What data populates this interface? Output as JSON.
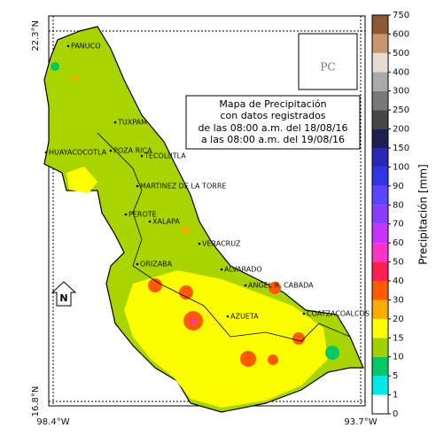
{
  "map": {
    "title": [
      "Mapa de Precipitación",
      "con datos registrados",
      "de las 08:00 a.m. del 18/08/16",
      "a las 08:00 a.m. del 19/08/16"
    ],
    "coords": {
      "lat_top": "22.3°N",
      "lat_bottom": "16.8°N",
      "lon_left": "98.4°W",
      "lon_right": "93.7°W"
    },
    "north": "N",
    "logo": "PC",
    "cities": [
      "PANUCO",
      "TUXPAM",
      "HUAYACOCOTLA",
      "POZA RICA",
      "TECOLUTLA",
      "MARTINEZ DE LA TORRE",
      "PEROTE",
      "XALAPA",
      "VERACRUZ",
      "ORIZABA",
      "ALVARADO",
      "ANGEL R. CABADA",
      "AZUETA",
      "COATZACOALCOS"
    ],
    "colorbar": {
      "label": "Precipitación [mm]",
      "ticks": [
        0,
        1,
        5,
        10,
        15,
        20,
        30,
        40,
        50,
        60,
        70,
        80,
        90,
        100,
        150,
        200,
        250,
        300,
        400,
        500,
        600,
        750
      ],
      "colors": [
        "#ffffff",
        "#00e8e8",
        "#00c864",
        "#a0d000",
        "#ffff00",
        "#ffaa00",
        "#ff5a00",
        "#ff1e50",
        "#ff32c8",
        "#c832ff",
        "#8c3cff",
        "#5a46ff",
        "#3232e6",
        "#2828b4",
        "#1e1e50",
        "#464646",
        "#787878",
        "#aaaaaa",
        "#e6dcd2",
        "#c8966e",
        "#8c5a32"
      ]
    }
  }
}
